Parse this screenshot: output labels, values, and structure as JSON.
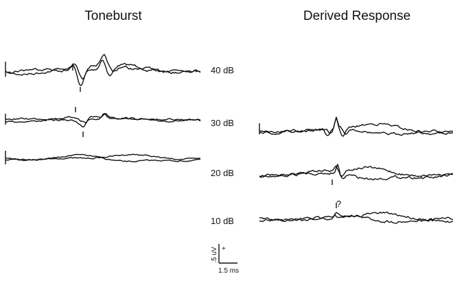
{
  "panels": [
    {
      "title": "Toneburst"
    },
    {
      "title": "Derived Response"
    }
  ],
  "levels": [
    "40 dB",
    "30 dB",
    "20 dB",
    "10 dB"
  ],
  "annotation": "?",
  "scale": {
    "amplitude": ".5 uV",
    "polarity": "+",
    "time": "1.5 ms"
  }
}
